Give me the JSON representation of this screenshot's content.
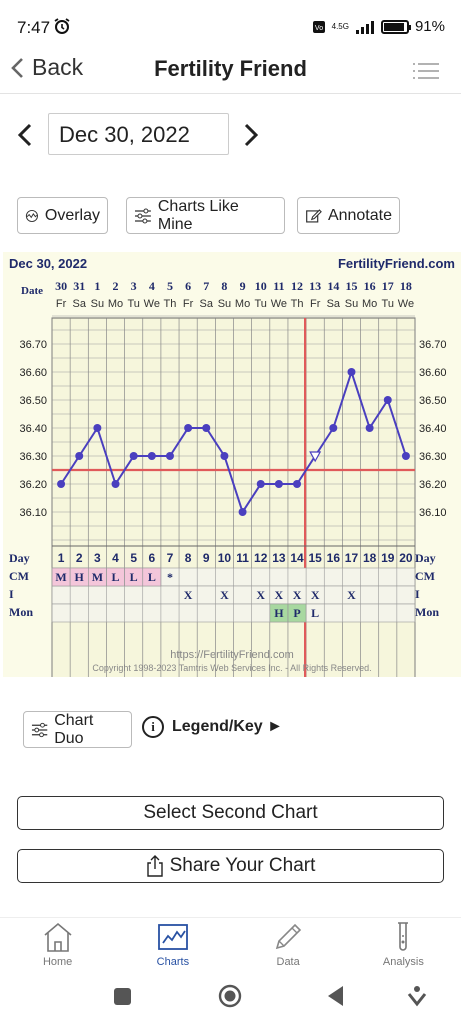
{
  "status": {
    "time": "7:47",
    "network": "4.5G",
    "battery": "91"
  },
  "header": {
    "back_label": "Back",
    "title": "Fertility Friend"
  },
  "date_nav": {
    "date": "Dec 30, 2022"
  },
  "buttons": {
    "overlay": "Overlay",
    "charts_like_mine": "Charts Like Mine",
    "annotate": "Annotate",
    "chart_duo": "Chart Duo",
    "legend": "Legend/Key ►",
    "select_second": "Select Second Chart",
    "share": "Share Your Chart"
  },
  "chart_data": {
    "type": "line",
    "title": "Dec 30, 2022",
    "brand": "FertilityFriend.com",
    "date_label": "Date",
    "dates": [
      "30",
      "31",
      "1",
      "2",
      "3",
      "4",
      "5",
      "6",
      "7",
      "8",
      "9",
      "10",
      "11",
      "12",
      "13",
      "14",
      "15",
      "16",
      "17",
      "18"
    ],
    "weekdays": [
      "Fr",
      "Sa",
      "Su",
      "Mo",
      "Tu",
      "We",
      "Th",
      "Fr",
      "Sa",
      "Su",
      "Mo",
      "Tu",
      "We",
      "Th",
      "Fr",
      "Sa",
      "Su",
      "Mo",
      "Tu",
      "We"
    ],
    "days": [
      "1",
      "2",
      "3",
      "4",
      "5",
      "6",
      "7",
      "8",
      "9",
      "10",
      "11",
      "12",
      "13",
      "14",
      "15",
      "16",
      "17",
      "18",
      "19",
      "20"
    ],
    "temps": [
      36.2,
      36.3,
      36.4,
      36.2,
      36.3,
      36.3,
      36.3,
      36.4,
      36.4,
      36.3,
      36.1,
      36.2,
      36.2,
      36.2,
      36.3,
      36.4,
      36.6,
      36.4,
      36.5,
      36.3
    ],
    "open_marker_day": 15,
    "ylim": [
      36.0,
      36.8
    ],
    "yticks": [
      "36.10",
      "36.20",
      "36.30",
      "36.40",
      "36.50",
      "36.60",
      "36.70"
    ],
    "coverline": 36.25,
    "ovulation_day": 14,
    "rows": {
      "day_label": "Day",
      "cm_label": "CM",
      "i_label": "I",
      "mon_label": "Mon",
      "cm": [
        "M",
        "H",
        "M",
        "L",
        "L",
        "L",
        "*",
        "",
        "",
        "",
        "",
        "",
        "",
        "",
        "",
        "",
        "",
        "",
        "",
        ""
      ],
      "i": [
        "",
        "",
        "",
        "",
        "",
        "",
        "",
        "X",
        "",
        "X",
        "",
        "X",
        "X",
        "X",
        "X",
        "",
        "X",
        "",
        "",
        ""
      ],
      "mon": [
        "",
        "",
        "",
        "",
        "",
        "",
        "",
        "",
        "",
        "",
        "",
        "",
        "H",
        "P",
        "L",
        "",
        "",
        "",
        "",
        ""
      ]
    },
    "footer_url": "https://FertilityFriend.com",
    "copyright": "Copyright 1998-2023 Tamtris Web Services Inc. - All Rights Reserved."
  },
  "bottom_nav": [
    {
      "label": "Home",
      "icon": "home-icon"
    },
    {
      "label": "Charts",
      "icon": "chart-icon"
    },
    {
      "label": "Data",
      "icon": "pencil-icon"
    },
    {
      "label": "Analysis",
      "icon": "test-tube-icon"
    }
  ],
  "colors": {
    "accent": "#2851a3",
    "line": "#4a3fbf",
    "grid_bg": "#f6f6dc",
    "coverline": "#e05a5a",
    "cm_bg": "#f4c6da",
    "mon_bg": "#a8d8a0"
  }
}
